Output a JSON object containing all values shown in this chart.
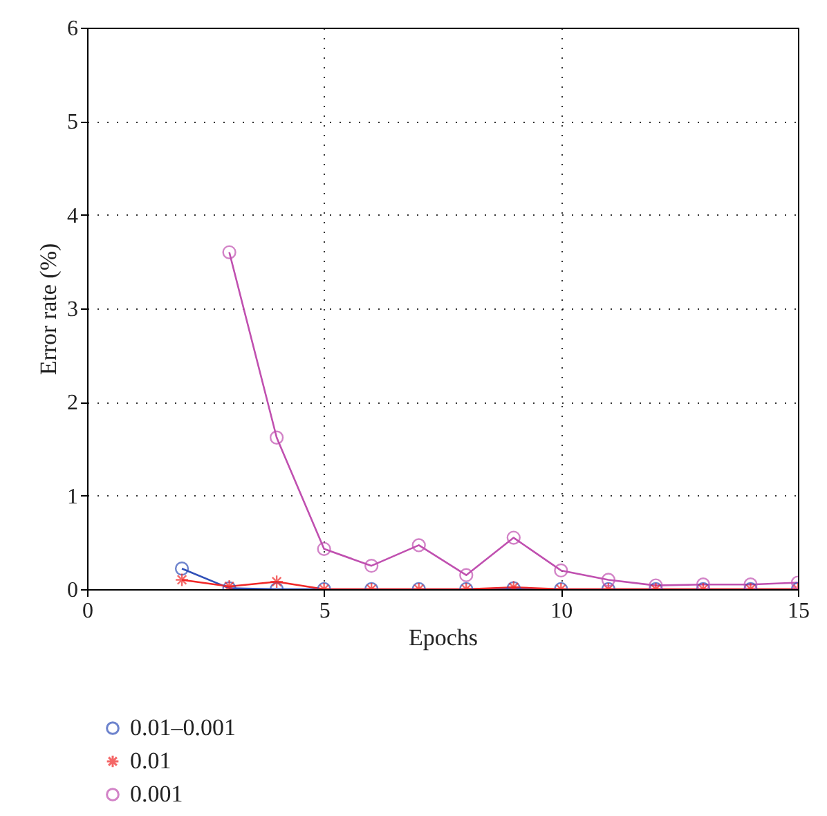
{
  "chart_data": {
    "type": "line",
    "xlabel": "Epochs",
    "ylabel": "Error rate (%)",
    "x": [
      2,
      3,
      4,
      5,
      6,
      7,
      8,
      9,
      10,
      11,
      12,
      13,
      14,
      15
    ],
    "series": [
      {
        "name": "0.01–0.001",
        "color": "#3050b8",
        "marker": "circle",
        "values": [
          0.22,
          0.01,
          0,
          0,
          0,
          0,
          0,
          0.01,
          0,
          0,
          0,
          0,
          0,
          0
        ]
      },
      {
        "name": "0.01",
        "color": "#f02828",
        "marker": "cross",
        "values": [
          0.1,
          0.03,
          0.08,
          0,
          0,
          0,
          0,
          0.02,
          0,
          0,
          0,
          0,
          0,
          0
        ]
      },
      {
        "name": "0.001",
        "color": "#c050b0",
        "marker": "circle",
        "x": [
          3,
          4,
          5,
          6,
          7,
          8,
          9,
          10,
          11,
          12,
          13,
          14,
          15
        ],
        "values": [
          3.6,
          1.62,
          0.43,
          0.25,
          0.47,
          0.15,
          0.55,
          0.2,
          0.1,
          0.04,
          0.05,
          0.05,
          0.07
        ]
      }
    ],
    "xlim": [
      0,
      15
    ],
    "xticks": [
      0,
      5,
      10,
      15
    ],
    "ylim": [
      0,
      6
    ],
    "yticks": [
      0,
      1,
      2,
      3,
      4,
      5,
      6
    ],
    "grid": true,
    "legend": "bottom left"
  }
}
